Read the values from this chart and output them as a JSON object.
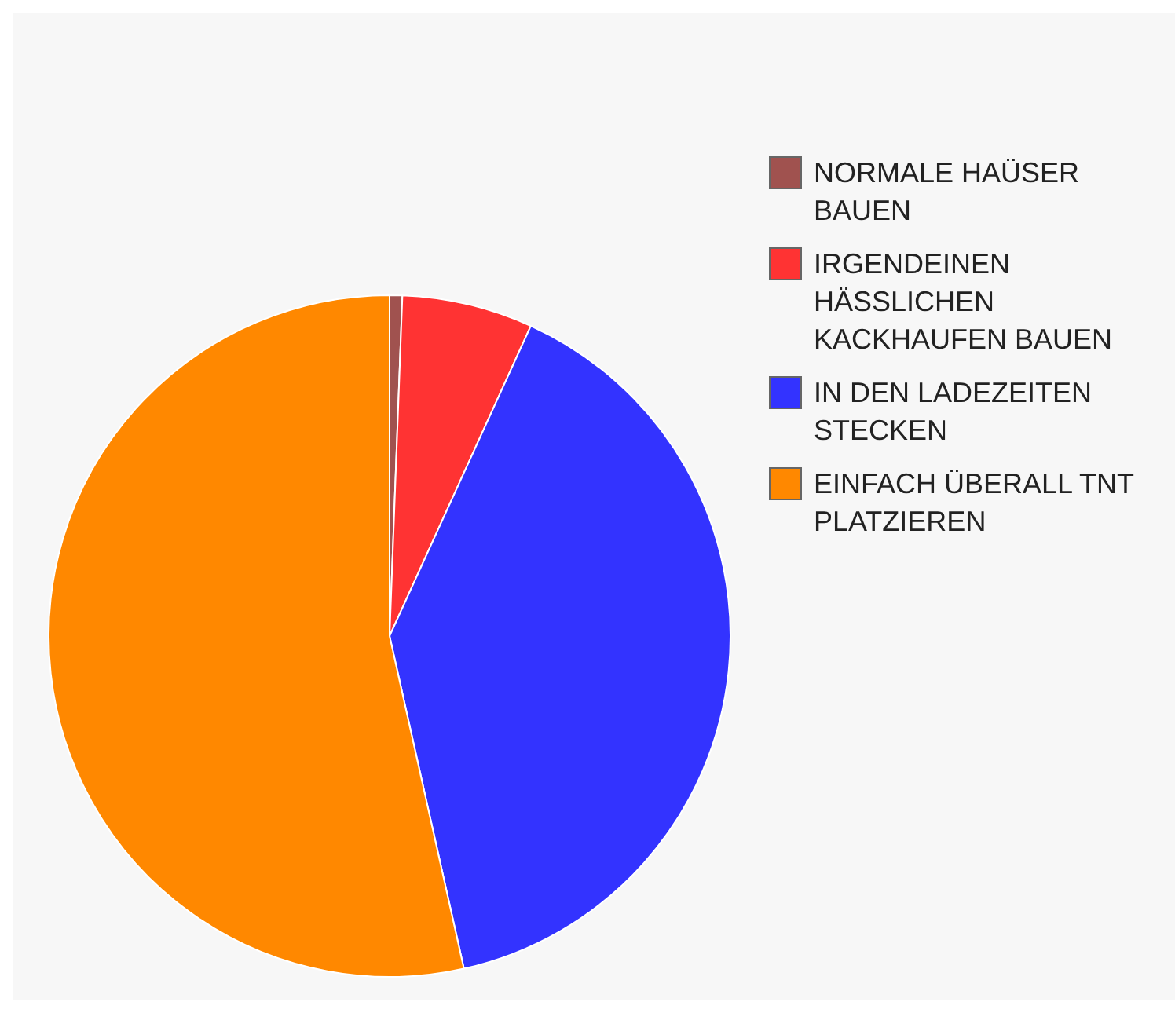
{
  "chart_data": {
    "type": "pie",
    "categories": [
      "NORMALE HAÜSER BAUEN",
      "IRGENDEINEN HÄSSLICHEN KACKHAUFEN BAUEN",
      "IN DEN LADEZEITEN STECKEN",
      "EINFACH ÜBERALL TNT PLATZIEREN"
    ],
    "values": [
      0.6,
      6.2,
      39.7,
      53.5
    ],
    "colors": [
      "#a0524f",
      "#ff3333",
      "#3333ff",
      "#ff8800"
    ],
    "legend": "right"
  }
}
